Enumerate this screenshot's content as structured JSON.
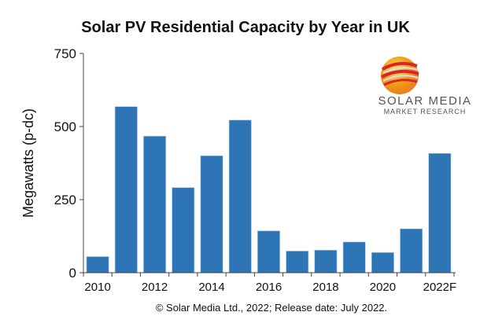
{
  "chart_data": {
    "type": "bar",
    "title": "Solar PV Residential Capacity by Year in UK",
    "ylabel": "Megawatts (p-dc)",
    "xlabel": "",
    "categories": [
      "2010",
      "2011",
      "2012",
      "2013",
      "2014",
      "2015",
      "2016",
      "2017",
      "2018",
      "2019",
      "2020",
      "2021",
      "2022F"
    ],
    "x_tick_labels": [
      "2010",
      "2012",
      "2014",
      "2016",
      "2018",
      "2020",
      "2022F"
    ],
    "values": [
      55,
      568,
      467,
      291,
      400,
      522,
      143,
      74,
      77,
      105,
      69,
      150,
      408
    ],
    "ylim": [
      0,
      750
    ],
    "y_ticks": [
      0,
      250,
      500,
      750
    ],
    "grid": false,
    "bar_color": "#2E75B6"
  },
  "logo": {
    "line1": "SOLAR MEDIA",
    "line2": "MARKET RESEARCH"
  },
  "footer": "© Solar Media Ltd., 2022; Release date: July 2022."
}
